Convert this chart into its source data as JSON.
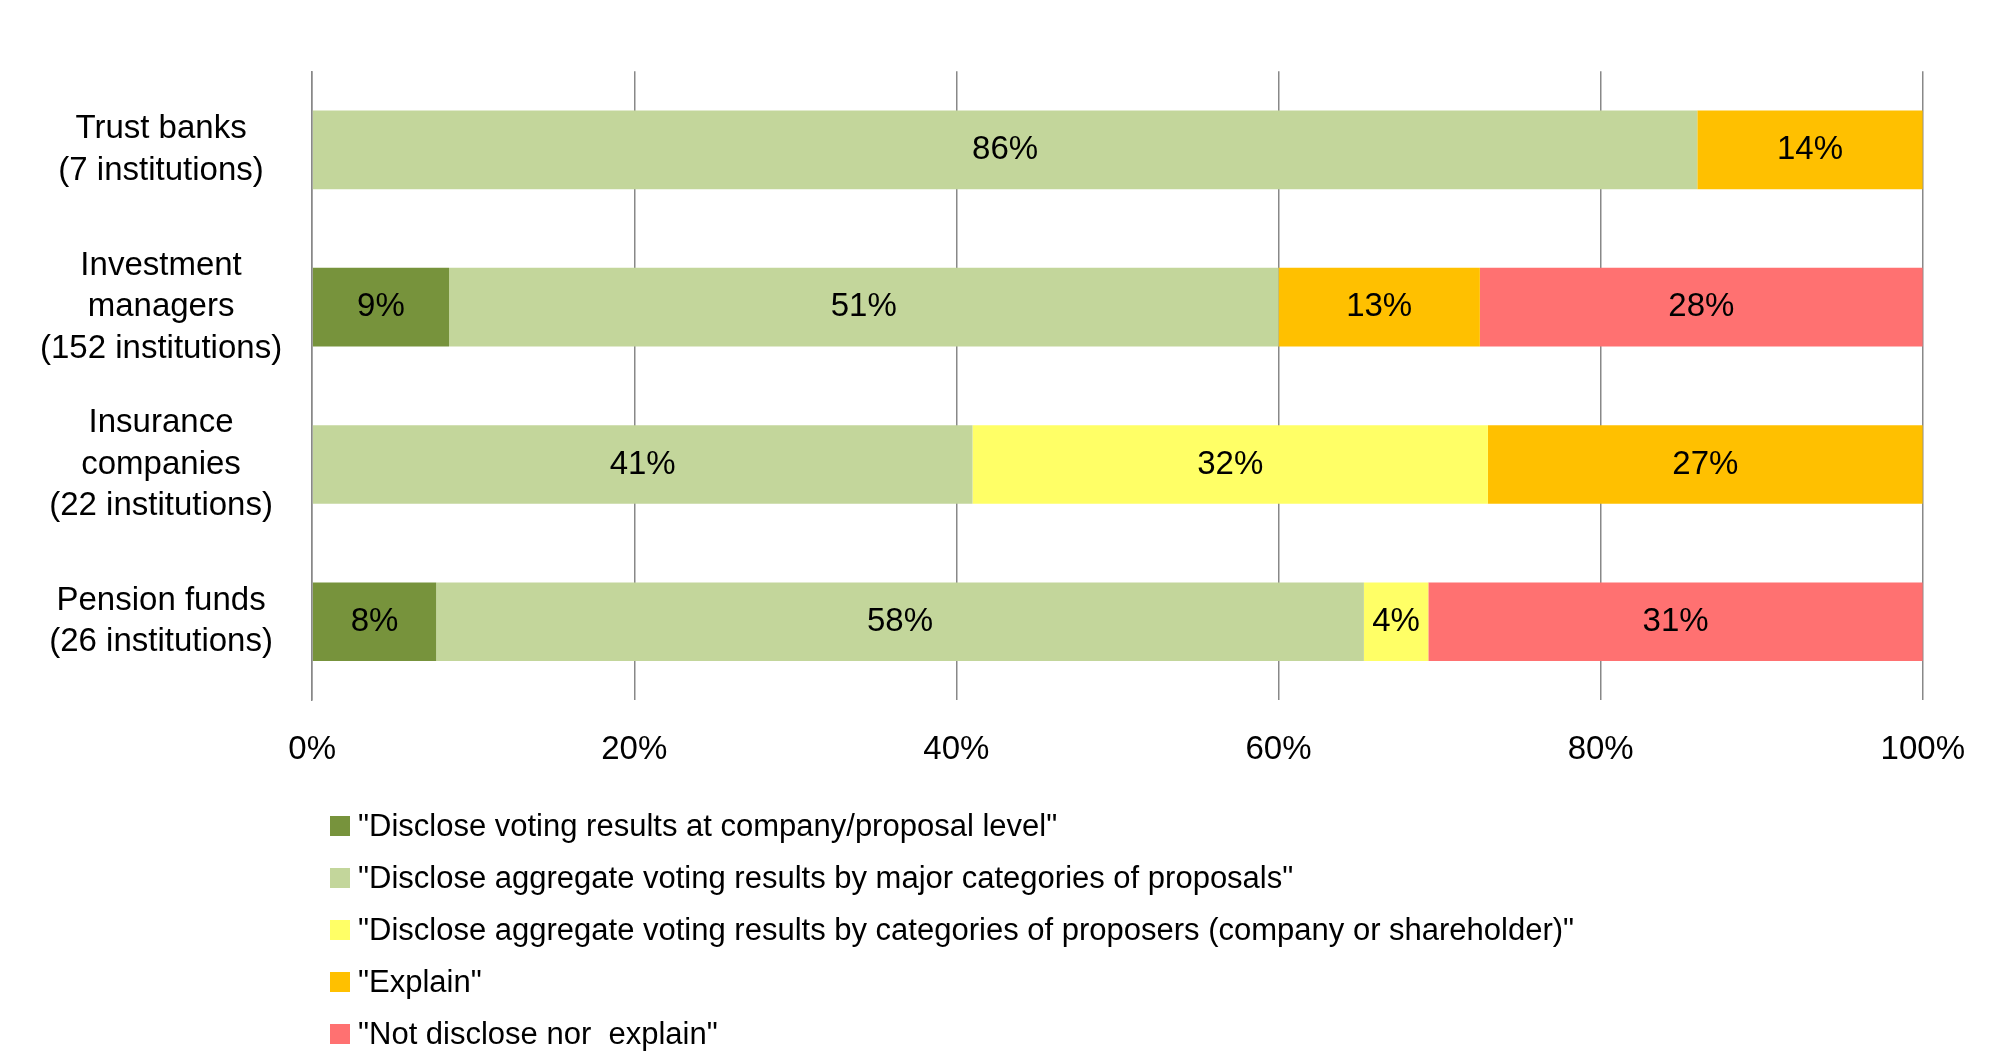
{
  "chart_data": {
    "type": "bar",
    "orientation": "horizontal",
    "stacked": true,
    "categories": [
      "Trust banks\n(7 institutions)",
      "Investment\nmanagers\n(152 institutions)",
      "Insurance\ncompanies\n(22 institutions)",
      "Pension funds\n(26 institutions)"
    ],
    "series": [
      {
        "name": "\"Disclose voting results at company/proposal level\"",
        "color": "#77933c",
        "values": [
          null,
          8.5,
          null,
          7.7
        ],
        "value_labels": [
          null,
          "9%",
          null,
          "8%"
        ]
      },
      {
        "name": "\"Disclose aggregate voting results by major categories of proposals\"",
        "color": "#c3d69b",
        "values": [
          86,
          51.5,
          41,
          57.6
        ],
        "value_labels": [
          "86%",
          "51%",
          "41%",
          "58%"
        ]
      },
      {
        "name": "\"Disclose aggregate voting results by categories of proposers (company or shareholder)\"",
        "color": "#ffff66",
        "values": [
          null,
          null,
          32,
          4
        ],
        "value_labels": [
          null,
          null,
          "32%",
          "4%"
        ]
      },
      {
        "name": "\"Explain\"",
        "color": "#ffc000",
        "values": [
          14,
          12.5,
          27,
          null
        ],
        "value_labels": [
          "14%",
          "13%",
          "27%",
          null
        ]
      },
      {
        "name": "\"Not disclose nor  explain\"",
        "color": "#ff7171",
        "values": [
          null,
          27.5,
          null,
          30.7
        ],
        "value_labels": [
          null,
          "28%",
          null,
          "31%"
        ]
      }
    ],
    "xlim": [
      0,
      100
    ],
    "xticks": [
      {
        "value": 0,
        "label": "0%"
      },
      {
        "value": 20,
        "label": "20%"
      },
      {
        "value": 40,
        "label": "40%"
      },
      {
        "value": 60,
        "label": "60%"
      },
      {
        "value": 80,
        "label": "80%"
      },
      {
        "value": 100,
        "label": "100%"
      }
    ],
    "grid": "x",
    "legend": "bottom"
  }
}
